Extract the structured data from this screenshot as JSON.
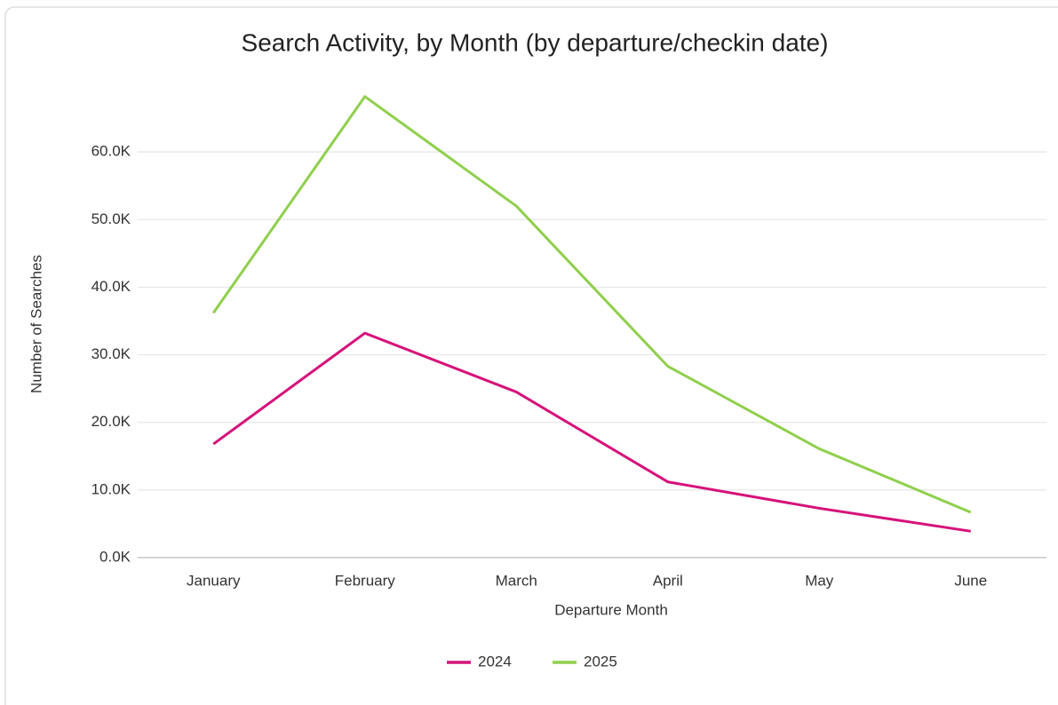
{
  "chart_data": {
    "type": "line",
    "title": "Search Activity, by Month (by departure/checkin date)",
    "xlabel": "Departure Month",
    "ylabel": "Number of Searches",
    "categories": [
      "January",
      "February",
      "March",
      "April",
      "May",
      "June"
    ],
    "series": [
      {
        "name": "2024",
        "color": "#d6127a",
        "values": [
          16800,
          33200,
          24500,
          11200,
          7300,
          3900
        ]
      },
      {
        "name": "2025",
        "color": "#8fcf4c",
        "values": [
          36200,
          68200,
          52000,
          28300,
          16100,
          6700
        ]
      }
    ],
    "ylim": [
      0,
      70000
    ],
    "yticks": [
      {
        "value": 0,
        "label": "0.0K"
      },
      {
        "value": 10000,
        "label": "10.0K"
      },
      {
        "value": 20000,
        "label": "20.0K"
      },
      {
        "value": 30000,
        "label": "30.0K"
      },
      {
        "value": 40000,
        "label": "40.0K"
      },
      {
        "value": 50000,
        "label": "50.0K"
      },
      {
        "value": 60000,
        "label": "60.0K"
      }
    ],
    "grid": true,
    "legend": "bottom"
  }
}
